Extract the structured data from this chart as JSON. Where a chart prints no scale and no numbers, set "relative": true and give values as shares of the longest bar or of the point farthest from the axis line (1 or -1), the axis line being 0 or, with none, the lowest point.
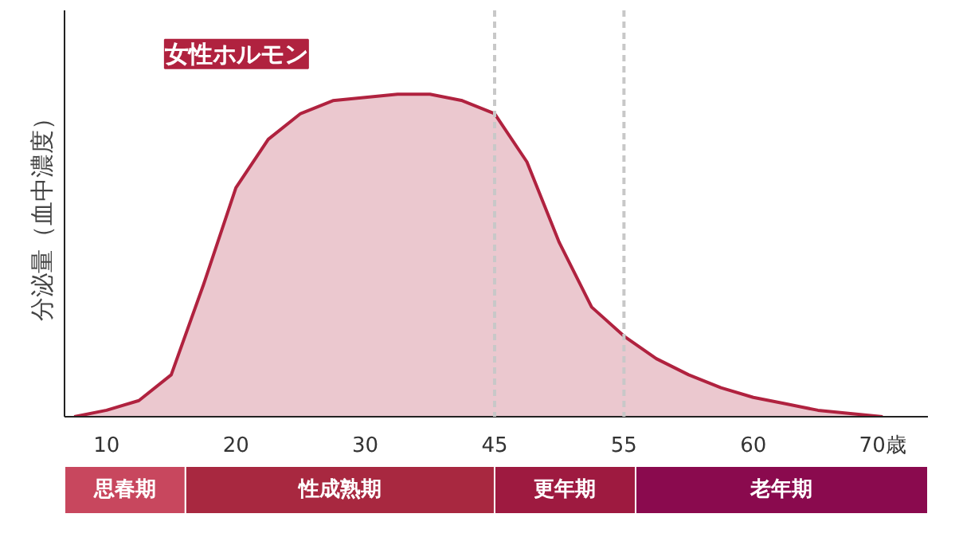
{
  "chart_data": {
    "type": "area",
    "relative": true,
    "ylabel": "分泌量（血中濃度）",
    "categories": [
      null,
      "10",
      null,
      null,
      null,
      "20",
      null,
      null,
      null,
      "30",
      null,
      null,
      null,
      "45",
      null,
      null,
      null,
      "55",
      null,
      null,
      null,
      "60",
      null,
      null,
      null,
      "70歳"
    ],
    "series": [
      {
        "name": "女性ホルモン",
        "color": "#b0223f",
        "values": [
          0,
          0.02,
          0.05,
          0.13,
          0.41,
          0.71,
          0.86,
          0.94,
          0.98,
          0.99,
          1.0,
          1.0,
          0.98,
          0.94,
          0.79,
          0.54,
          0.34,
          0.25,
          0.18,
          0.13,
          0.09,
          0.06,
          0.04,
          0.02,
          0.01,
          0
        ]
      }
    ],
    "ref_lines": [
      {
        "axis": "x",
        "value": "45",
        "color": "#c8c8c8",
        "line_style": "dashed"
      },
      {
        "axis": "x",
        "value": "55",
        "color": "#c8c8c8",
        "line_style": "dashed"
      }
    ],
    "annotations": [
      "思春期",
      "性成熟期",
      "更年期",
      "老年期"
    ],
    "grid": false,
    "legend": false
  }
}
